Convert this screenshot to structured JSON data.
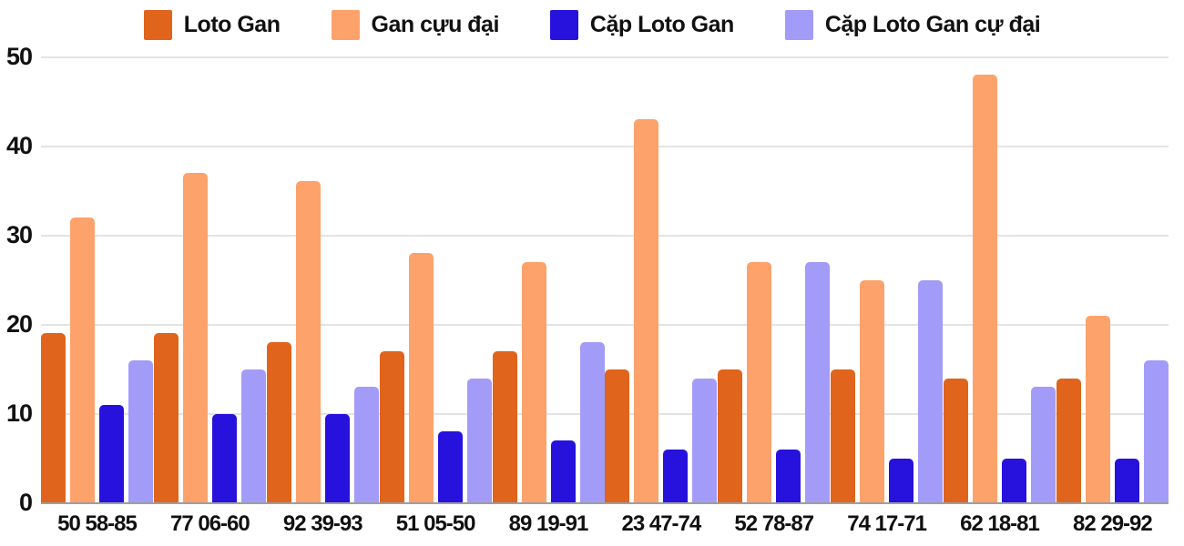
{
  "chart_data": {
    "type": "bar",
    "title": "",
    "categories": [
      "50 58-85",
      "77 06-60",
      "92 39-93",
      "51 05-50",
      "89 19-91",
      "23 47-74",
      "52 78-87",
      "74 17-71",
      "62 18-81",
      "82 29-92"
    ],
    "series": [
      {
        "name": "Loto Gan",
        "color": "#e0641b",
        "values": [
          19,
          19,
          18,
          17,
          17,
          15,
          15,
          15,
          14,
          14
        ]
      },
      {
        "name": "Gan cựu đại",
        "color": "#fda26b",
        "values": [
          32,
          37,
          36,
          28,
          27,
          43,
          27,
          25,
          48,
          21
        ]
      },
      {
        "name": "Cặp Loto Gan",
        "color": "#2712dd",
        "values": [
          11,
          10,
          10,
          8,
          7,
          6,
          6,
          5,
          5,
          5
        ]
      },
      {
        "name": "Cặp Loto Gan cự đại",
        "color": "#a39bf8",
        "values": [
          16,
          15,
          13,
          14,
          18,
          14,
          27,
          25,
          13,
          16
        ]
      }
    ],
    "xlabel": "",
    "ylabel": "",
    "ylim": [
      0,
      50
    ],
    "yticks": [
      0,
      10,
      20,
      30,
      40,
      50
    ],
    "grid": "horizontal",
    "legend_position": "top"
  },
  "colors": {
    "background": "#ffffff",
    "gridline": "#e3e3e3",
    "axis_line": "#9e9e9e",
    "text": "#111111"
  }
}
